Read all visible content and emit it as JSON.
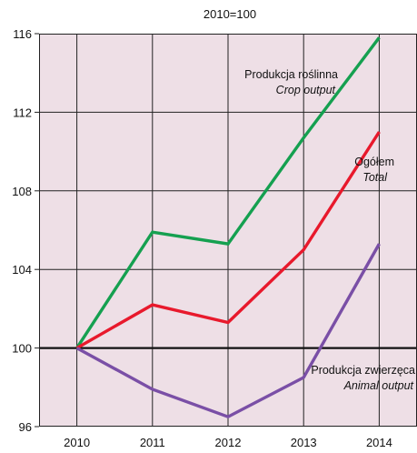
{
  "chart_data": {
    "type": "line",
    "title": "2010=100",
    "xlabel": "",
    "ylabel": "",
    "x": [
      "2010",
      "2011",
      "2012",
      "2013",
      "2014"
    ],
    "ylim": [
      96,
      116
    ],
    "yticks": [
      96,
      100,
      104,
      108,
      112,
      116
    ],
    "grid": true,
    "background": "#eedfe6",
    "baseline": 100,
    "series": [
      {
        "id": "crop",
        "name": "Produkcja roślinna",
        "name_en": "Crop output",
        "color": "#15a050",
        "values": [
          100,
          105.9,
          105.3,
          110.7,
          115.8
        ]
      },
      {
        "id": "total",
        "name": "Ogółem",
        "name_en": "Total",
        "color": "#e8192c",
        "values": [
          100,
          102.2,
          101.3,
          105.0,
          111.0
        ]
      },
      {
        "id": "animal",
        "name": "Produkcja zwierzęca",
        "name_en": "Animal output",
        "color": "#7a4fa6",
        "values": [
          100,
          97.9,
          96.5,
          98.5,
          105.3
        ]
      }
    ]
  }
}
